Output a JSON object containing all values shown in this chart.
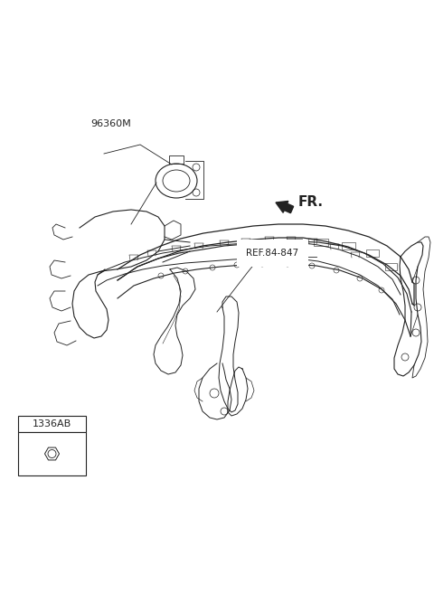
{
  "background_color": "#ffffff",
  "fig_width": 4.8,
  "fig_height": 6.56,
  "dpi": 100,
  "label_96360M": "96360M",
  "label_ref": "REF.84-847",
  "label_fr": "FR.",
  "label_part": "1336AB",
  "line_color": "#222222",
  "line_color_light": "#555555"
}
